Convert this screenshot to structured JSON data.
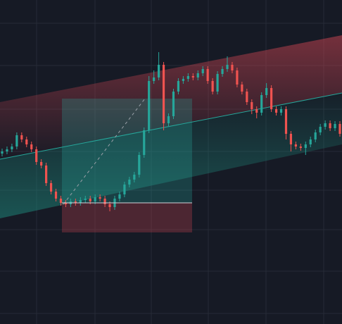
{
  "chart_data": {
    "type": "candlestick",
    "up_color": "#26a69a",
    "down_color": "#ef5350",
    "ylim": [
      0,
      460
    ],
    "open": [
      242,
      245,
      248,
      252,
      268,
      262,
      255,
      248,
      230,
      225,
      200,
      188,
      178,
      172,
      170,
      174,
      172,
      176,
      178,
      174,
      180,
      178,
      170,
      166,
      178,
      184,
      198,
      205,
      212,
      240,
      275,
      345,
      350,
      368,
      285,
      295,
      330,
      345,
      348,
      352,
      350,
      356,
      362,
      345,
      330,
      355,
      362,
      368,
      360,
      340,
      330,
      315,
      305,
      300,
      325,
      335,
      305,
      300,
      305,
      270,
      255,
      252,
      250,
      255,
      262,
      272,
      280,
      285,
      278,
      284
    ],
    "high": [
      249,
      252,
      256,
      272,
      272,
      266,
      259,
      252,
      234,
      229,
      204,
      192,
      182,
      176,
      178,
      178,
      180,
      182,
      182,
      184,
      184,
      182,
      174,
      182,
      188,
      202,
      209,
      216,
      244,
      279,
      352,
      360,
      386,
      372,
      299,
      334,
      349,
      352,
      356,
      356,
      360,
      366,
      366,
      349,
      359,
      366,
      380,
      372,
      364,
      344,
      334,
      319,
      309,
      329,
      342,
      339,
      309,
      309,
      309,
      274,
      259,
      256,
      259,
      266,
      276,
      284,
      289,
      289,
      288,
      288
    ],
    "low": [
      238,
      241,
      244,
      248,
      258,
      251,
      244,
      226,
      221,
      196,
      184,
      174,
      168,
      166,
      166,
      168,
      168,
      172,
      170,
      170,
      174,
      166,
      160,
      162,
      174,
      180,
      194,
      201,
      208,
      236,
      271,
      341,
      346,
      275,
      281,
      291,
      326,
      341,
      344,
      346,
      346,
      352,
      341,
      326,
      326,
      351,
      358,
      356,
      336,
      326,
      311,
      298,
      292,
      296,
      321,
      301,
      296,
      296,
      262,
      245,
      248,
      246,
      240,
      251,
      258,
      268,
      276,
      274,
      274,
      266
    ],
    "close": [
      245,
      248,
      252,
      268,
      262,
      255,
      248,
      230,
      225,
      200,
      188,
      178,
      172,
      170,
      174,
      172,
      176,
      178,
      174,
      180,
      178,
      170,
      166,
      178,
      184,
      198,
      205,
      212,
      240,
      275,
      345,
      350,
      368,
      285,
      295,
      330,
      345,
      348,
      352,
      350,
      356,
      362,
      345,
      330,
      355,
      362,
      368,
      360,
      340,
      330,
      315,
      305,
      300,
      325,
      335,
      305,
      300,
      305,
      270,
      255,
      252,
      250,
      255,
      262,
      272,
      280,
      285,
      278,
      284,
      270
    ]
  }
}
